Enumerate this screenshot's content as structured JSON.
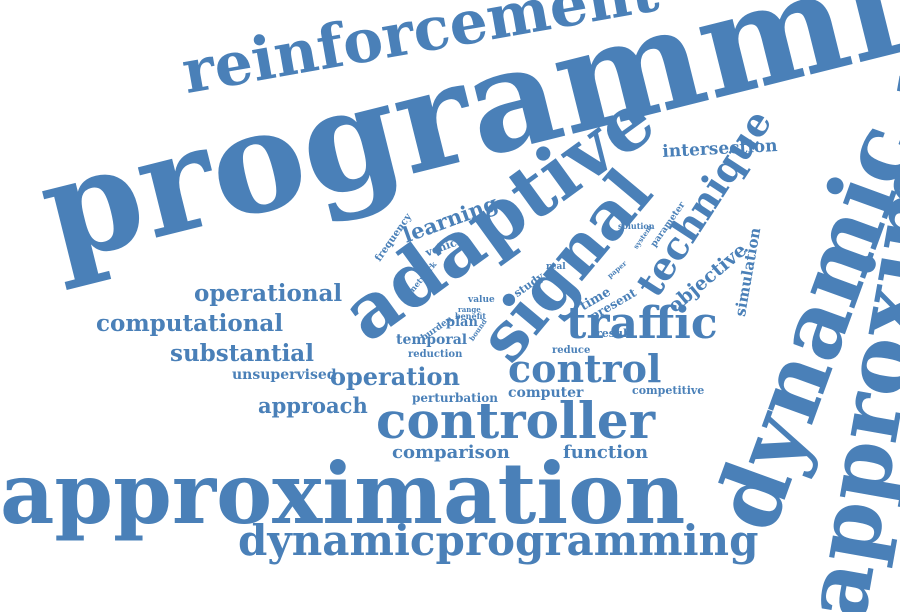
{
  "style": {
    "word_color": "#4a80b8",
    "background": "#ffffff"
  },
  "words": {
    "programming": "programming",
    "reinforcement": "reinforcement",
    "adaptive": "adaptive",
    "signal": "signal",
    "intersection": "intersection",
    "dynamic": "dynamic",
    "approximate": "approximate",
    "technique": "technique",
    "learning": "learning",
    "vehicle": "vehicle",
    "frequency": "frequency",
    "network": "network",
    "operational": "operational",
    "computational": "computational",
    "substantial": "substantial",
    "unsupervised": "unsupervised",
    "approach": "approach",
    "operation": "operation",
    "control": "control",
    "controller": "controller",
    "traffic": "traffic",
    "temporal": "temporal",
    "reduction": "reduction",
    "plan": "plan",
    "burden": "burden",
    "benefit": "benefit",
    "value": "value",
    "range": "range",
    "bound": "bound",
    "study": "study",
    "real": "real",
    "time": "time",
    "present": "present",
    "result": "result",
    "paper": "paper",
    "solution": "solution",
    "parameter": "parameter",
    "system": "system",
    "objective": "objective",
    "simulation": "simulation",
    "competitive": "competitive",
    "reduce": "reduce",
    "perturbation": "perturbation",
    "computer": "computer",
    "comparison": "comparison",
    "function": "function",
    "approximation": "approximation",
    "dynamicprogramming": "dynamicprogramming"
  }
}
